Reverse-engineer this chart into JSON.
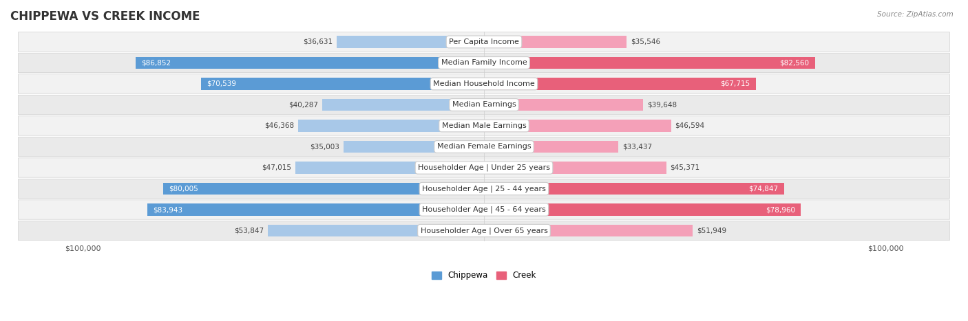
{
  "title": "CHIPPEWA VS CREEK INCOME",
  "source": "Source: ZipAtlas.com",
  "categories": [
    "Per Capita Income",
    "Median Family Income",
    "Median Household Income",
    "Median Earnings",
    "Median Male Earnings",
    "Median Female Earnings",
    "Householder Age | Under 25 years",
    "Householder Age | 25 - 44 years",
    "Householder Age | 45 - 64 years",
    "Householder Age | Over 65 years"
  ],
  "chippewa_values": [
    36631,
    86852,
    70539,
    40287,
    46368,
    35003,
    47015,
    80005,
    83943,
    53847
  ],
  "creek_values": [
    35546,
    82560,
    67715,
    39648,
    46594,
    33437,
    45371,
    74847,
    78960,
    51949
  ],
  "chippewa_light": "#a8c8e8",
  "chippewa_solid": "#5b9bd5",
  "creek_light": "#f4a0b8",
  "creek_solid": "#e8607a",
  "chippewa_label": "Chippewa",
  "creek_label": "Creek",
  "max_value": 100000,
  "row_colors": [
    "#f2f2f2",
    "#eaeaea"
  ],
  "bar_height": 0.58,
  "title_fontsize": 12,
  "label_fontsize": 8,
  "value_fontsize": 7.5,
  "axis_fontsize": 8,
  "solid_threshold": 0.62
}
